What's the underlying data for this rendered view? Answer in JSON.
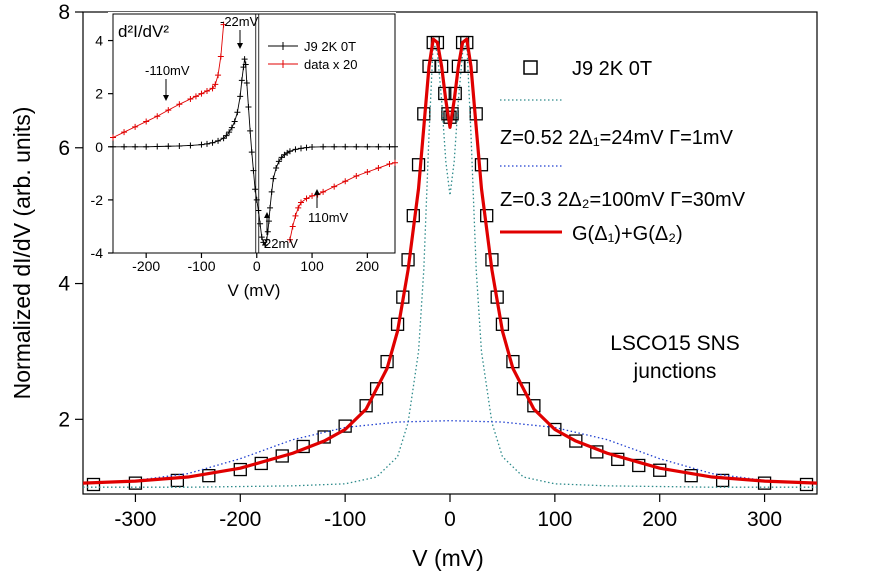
{
  "chart_data": [
    {
      "type": "scatter",
      "title": "",
      "xlabel": "V (mV)",
      "ylabel": "Normalized dI/dV (arb. units)",
      "xlim": [
        -350,
        350
      ],
      "ylim": [
        0.9,
        8
      ],
      "xticks": [
        -300,
        -200,
        -100,
        0,
        100,
        200,
        300
      ],
      "xtick_labels": [
        "-300",
        "-200",
        "-100",
        "0",
        "100",
        "200",
        "300"
      ],
      "yticks": [
        2,
        4,
        6,
        8
      ],
      "ytick_labels": [
        "2",
        "4",
        "6",
        "8"
      ],
      "grid": false,
      "legend_position": "top-right",
      "annotations": [
        {
          "text": "LSCO15 SNS",
          "x": 250,
          "y": 3.15
        },
        {
          "text": "junctions",
          "x": 250,
          "y": 2.75
        }
      ],
      "series": [
        {
          "name": "J9  2K  0T",
          "marker": "open-square",
          "color": "#000000",
          "x": [
            -340,
            -300,
            -260,
            -230,
            -200,
            -180,
            -160,
            -140,
            -120,
            -100,
            -80,
            -70,
            -60,
            -50,
            -45,
            -40,
            -35,
            -30,
            -25,
            -20,
            -16,
            -12,
            -8,
            -5,
            -2,
            0,
            2,
            5,
            8,
            12,
            16,
            20,
            25,
            30,
            35,
            40,
            45,
            50,
            60,
            70,
            80,
            100,
            120,
            140,
            160,
            180,
            200,
            230,
            260,
            300,
            340
          ],
          "y": [
            1.04,
            1.06,
            1.1,
            1.17,
            1.26,
            1.35,
            1.46,
            1.6,
            1.74,
            1.9,
            2.2,
            2.45,
            2.85,
            3.4,
            3.8,
            4.35,
            5.0,
            5.75,
            6.5,
            7.2,
            7.55,
            7.55,
            7.2,
            6.8,
            6.5,
            6.45,
            6.5,
            6.8,
            7.2,
            7.55,
            7.55,
            7.2,
            6.5,
            5.75,
            5.0,
            4.35,
            3.8,
            3.4,
            2.85,
            2.45,
            2.2,
            1.85,
            1.68,
            1.52,
            1.41,
            1.32,
            1.25,
            1.17,
            1.1,
            1.06,
            1.04
          ]
        },
        {
          "name": "Z=0.52  2Δ1=24mV  Γ=1mV",
          "style": "dotted",
          "color": "#2e8b8b",
          "x": [
            -350,
            -250,
            -150,
            -100,
            -70,
            -50,
            -40,
            -30,
            -25,
            -20,
            -16,
            -12,
            -8,
            -4,
            0,
            4,
            8,
            12,
            16,
            20,
            25,
            30,
            40,
            50,
            70,
            100,
            150,
            250,
            350
          ],
          "y": [
            1.0,
            1.0,
            1.02,
            1.05,
            1.15,
            1.45,
            1.95,
            3.0,
            4.2,
            6.2,
            7.55,
            7.4,
            6.7,
            5.8,
            5.3,
            5.8,
            6.7,
            7.4,
            7.55,
            6.2,
            4.2,
            3.0,
            1.95,
            1.45,
            1.15,
            1.05,
            1.02,
            1.0,
            1.0
          ]
        },
        {
          "name": "Z=0.3  2Δ2=100mV  Γ=30mV",
          "style": "dotted",
          "color": "#1f3fd0",
          "x": [
            -350,
            -300,
            -250,
            -200,
            -150,
            -100,
            -50,
            0,
            50,
            100,
            150,
            200,
            250,
            300,
            350
          ],
          "y": [
            1.05,
            1.1,
            1.2,
            1.42,
            1.7,
            1.88,
            1.96,
            1.98,
            1.96,
            1.88,
            1.7,
            1.42,
            1.2,
            1.1,
            1.05
          ]
        },
        {
          "name": "G(Δ1)+G(Δ2)",
          "style": "solid",
          "color": "#e00000",
          "x": [
            -350,
            -300,
            -250,
            -200,
            -150,
            -120,
            -100,
            -80,
            -60,
            -50,
            -40,
            -30,
            -25,
            -20,
            -16,
            -12,
            -8,
            -4,
            0,
            4,
            8,
            12,
            16,
            20,
            25,
            30,
            40,
            50,
            60,
            80,
            100,
            120,
            150,
            200,
            250,
            300,
            350
          ],
          "y": [
            1.06,
            1.09,
            1.15,
            1.28,
            1.5,
            1.68,
            1.85,
            2.15,
            2.75,
            3.3,
            4.2,
            5.4,
            6.3,
            7.2,
            7.6,
            7.55,
            7.2,
            6.7,
            6.3,
            6.7,
            7.2,
            7.55,
            7.6,
            7.2,
            6.3,
            5.4,
            4.2,
            3.3,
            2.75,
            2.15,
            1.85,
            1.68,
            1.5,
            1.28,
            1.15,
            1.09,
            1.06
          ]
        }
      ]
    },
    {
      "type": "scatter",
      "title": "",
      "ylabel": "d²I/dV²",
      "xlabel": "V (mV)",
      "xlim": [
        -260,
        250
      ],
      "ylim": [
        -4,
        5
      ],
      "xticks": [
        -200,
        -100,
        0,
        100,
        200
      ],
      "xtick_labels": [
        "-200",
        "-100",
        "0",
        "100",
        "200"
      ],
      "yticks": [
        -4,
        -2,
        0,
        2,
        4
      ],
      "ytick_labels": [
        "-4",
        "-2",
        "0",
        "2",
        "4"
      ],
      "legend_position": "top-right",
      "annotations": [
        {
          "text": "-110mV",
          "x": -110,
          "y": 2.6
        },
        {
          "text": "-22mV",
          "x": -22,
          "y": 4.7
        },
        {
          "text": "22mV",
          "x": 22,
          "y": -3.9
        },
        {
          "text": "110mV",
          "x": 110,
          "y": -2.8
        }
      ],
      "series": [
        {
          "name": "J9  2K  0T",
          "marker": "plus",
          "color": "#000000",
          "x": [
            -260,
            -240,
            -220,
            -200,
            -180,
            -160,
            -140,
            -120,
            -100,
            -90,
            -80,
            -70,
            -60,
            -55,
            -50,
            -45,
            -40,
            -35,
            -30,
            -27,
            -24,
            -22,
            -20,
            -18,
            -15,
            -12,
            -9,
            -6,
            -3,
            0,
            3,
            6,
            9,
            12,
            15,
            18,
            20,
            22,
            24,
            27,
            30,
            35,
            40,
            45,
            50,
            55,
            60,
            70,
            80,
            90,
            100,
            120,
            140,
            160,
            180,
            200,
            220,
            240,
            250
          ],
          "y": [
            0.0,
            0.0,
            0.0,
            0.0,
            0.01,
            0.02,
            0.03,
            0.05,
            0.08,
            0.11,
            0.15,
            0.22,
            0.32,
            0.42,
            0.55,
            0.72,
            0.95,
            1.3,
            1.9,
            2.5,
            3.0,
            3.3,
            3.1,
            2.4,
            1.5,
            0.6,
            -0.2,
            -0.9,
            -1.6,
            -2.0,
            -2.4,
            -2.9,
            -3.4,
            -3.6,
            -3.7,
            -3.5,
            -3.2,
            -2.8,
            -2.3,
            -1.7,
            -1.2,
            -0.8,
            -0.55,
            -0.4,
            -0.3,
            -0.23,
            -0.17,
            -0.1,
            -0.06,
            -0.03,
            -0.01,
            0.0,
            0.0,
            0.0,
            0.0,
            0.0,
            0.0,
            0.0,
            0.0
          ]
        },
        {
          "name": "data x 20",
          "marker": "plus",
          "color": "#e00000",
          "x": [
            -260,
            -240,
            -220,
            -200,
            -180,
            -160,
            -140,
            -120,
            -110,
            -100,
            -90,
            -80,
            -75,
            -70,
            -65,
            -60
          ],
          "y": [
            0.35,
            0.55,
            0.75,
            0.95,
            1.15,
            1.38,
            1.6,
            1.8,
            1.9,
            2.0,
            2.1,
            2.2,
            2.35,
            2.7,
            3.4,
            4.6
          ]
        },
        {
          "name": "data x 20",
          "marker": "plus",
          "color": "#e00000",
          "x": [
            60,
            65,
            70,
            75,
            80,
            90,
            100,
            110,
            120,
            140,
            160,
            180,
            200,
            220,
            240,
            250
          ],
          "y": [
            -3.5,
            -3.0,
            -2.6,
            -2.3,
            -2.1,
            -1.95,
            -1.85,
            -1.8,
            -1.7,
            -1.5,
            -1.3,
            -1.1,
            -0.95,
            -0.8,
            -0.65,
            -0.6
          ]
        }
      ]
    }
  ],
  "main": {
    "legend": [
      {
        "label": "J9  2K  0T",
        "kind": "square"
      },
      {
        "label": "Z=0.52  2Δ₁=24mV  Γ=1mV",
        "kind": "teal-dots"
      },
      {
        "label": "Z=0.3  2Δ₂=100mV  Γ=30mV",
        "kind": "blue-dots"
      },
      {
        "label": "G(Δ₁)+G(Δ₂)",
        "kind": "red-line"
      }
    ],
    "annotation_line1": "LSCO15 SNS",
    "annotation_line2": "junctions",
    "xlabel": "V (mV)",
    "ylabel": "Normalized dI/dV (arb. units)"
  },
  "inset": {
    "ylabel": "d²I/dV²",
    "xlabel": "V (mV)",
    "legend": [
      "J9  2K  0T",
      "data x 20"
    ],
    "annotations": [
      "-110mV",
      "-22mV",
      "22mV",
      "110mV"
    ]
  },
  "colors": {
    "red": "#e00000",
    "teal": "#2e8b8b",
    "blue": "#1f3fd0",
    "black": "#000000"
  }
}
